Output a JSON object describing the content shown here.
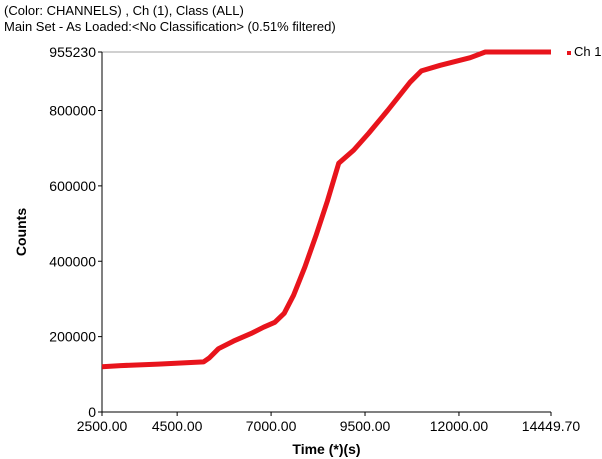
{
  "header": {
    "line1": "(Color: CHANNELS) , Ch (1), Class (ALL)",
    "line2": "Main Set - As Loaded:<No Classification> (0.51% filtered)"
  },
  "chart_data": {
    "type": "line",
    "title": "",
    "xlabel": "Time (*)(s)",
    "ylabel": "Counts",
    "xlim": [
      2500,
      14449.7
    ],
    "ylim": [
      0,
      955230
    ],
    "x_ticks": [
      "2500.00",
      "4500.00",
      "7000.00",
      "9500.00",
      "12000.00",
      "14449.70"
    ],
    "x_tick_values": [
      2500,
      4500,
      7000,
      9500,
      12000,
      14449.7
    ],
    "y_ticks": [
      "0",
      "200000",
      "400000",
      "600000",
      "800000",
      "955230"
    ],
    "y_tick_values": [
      0,
      200000,
      400000,
      600000,
      800000,
      955230
    ],
    "grid": false,
    "legend_position": "top-right",
    "series": [
      {
        "name": "Ch 1",
        "color": "#e8141c",
        "x": [
          2500,
          3000,
          4000,
          5200,
          5350,
          5600,
          6000,
          6500,
          6800,
          7100,
          7350,
          7600,
          7900,
          8200,
          8500,
          8800,
          9200,
          9600,
          10100,
          10700,
          11000,
          11500,
          12300,
          12700,
          14449.7
        ],
        "y": [
          120000,
          123000,
          127000,
          133000,
          143000,
          168000,
          188000,
          210000,
          225000,
          238000,
          262000,
          310000,
          385000,
          470000,
          560000,
          660000,
          695000,
          740000,
          800000,
          875000,
          905000,
          920000,
          940000,
          955230,
          955230
        ]
      }
    ]
  }
}
